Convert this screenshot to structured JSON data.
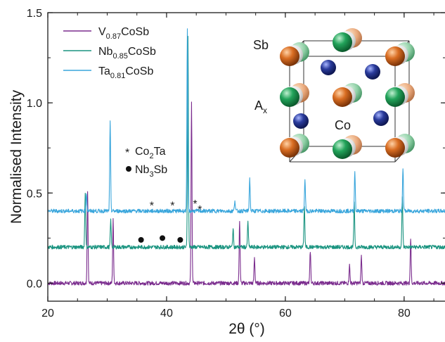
{
  "chart_data": {
    "type": "line",
    "xlabel": "2θ (°)",
    "ylabel": "Normalised Intensity",
    "xlim": [
      20,
      87
    ],
    "ylim": [
      -0.1,
      1.5
    ],
    "xticks": [
      "20",
      "40",
      "60",
      "80"
    ],
    "yticks": [
      "0.0",
      "0.5",
      "1.0",
      "1.5"
    ],
    "x_minor_step": 5,
    "y_minor_step": 0.25,
    "grid": false,
    "legend_position": "top-left",
    "series": [
      {
        "name": "V0.87CoSb",
        "name_parts": {
          "base": "V",
          "sub": "0.87",
          "rest": "CoSb"
        },
        "color": "#7b2d8e",
        "baseline": 0.0,
        "peaks": [
          [
            26.7,
            0.51
          ],
          [
            31.0,
            0.35
          ],
          [
            44.2,
            1.0
          ],
          [
            52.3,
            0.35
          ],
          [
            54.8,
            0.14
          ],
          [
            64.2,
            0.18
          ],
          [
            70.8,
            0.1
          ],
          [
            72.8,
            0.15
          ],
          [
            81.1,
            0.25
          ]
        ]
      },
      {
        "name": "Nb0.85CoSb",
        "name_parts": {
          "base": "Nb",
          "sub": "0.85",
          "rest": "CoSb"
        },
        "color": "#1a9480",
        "baseline": 0.2,
        "peaks": [
          [
            26.3,
            0.3
          ],
          [
            30.6,
            0.15
          ],
          [
            43.6,
            1.18
          ],
          [
            51.2,
            0.1
          ],
          [
            53.7,
            0.14
          ],
          [
            63.2,
            0.23
          ],
          [
            71.6,
            0.24
          ],
          [
            79.7,
            0.28
          ]
        ]
      },
      {
        "name": "Ta0.81CoSb",
        "name_parts": {
          "base": "Ta",
          "sub": "0.81",
          "rest": "CoSb"
        },
        "color": "#3aa6dc",
        "baseline": 0.4,
        "peaks": [
          [
            26.5,
            0.1
          ],
          [
            30.5,
            0.49
          ],
          [
            43.5,
            1.0
          ],
          [
            51.5,
            0.06
          ],
          [
            54.0,
            0.18
          ],
          [
            63.3,
            0.18
          ],
          [
            71.7,
            0.22
          ],
          [
            79.8,
            0.24
          ]
        ]
      }
    ],
    "annotations": {
      "legend_markers": [
        {
          "symbol": "*",
          "formula": {
            "base": "Co",
            "sub": "2",
            "rest": "Ta"
          }
        },
        {
          "symbol": "●",
          "formula": {
            "base": "Nb",
            "sub": "3",
            "rest": "Sb"
          }
        }
      ],
      "star_markers": [
        [
          37.5,
          0.44
        ],
        [
          41.0,
          0.44
        ],
        [
          44.8,
          0.45
        ],
        [
          45.6,
          0.42
        ]
      ],
      "dot_markers": [
        [
          35.7,
          0.24
        ],
        [
          39.3,
          0.25
        ],
        [
          42.3,
          0.24
        ]
      ]
    },
    "inset": {
      "labels": {
        "sb": "Sb",
        "ax": {
          "base": "A",
          "sub": "x"
        },
        "co": "Co"
      }
    }
  }
}
